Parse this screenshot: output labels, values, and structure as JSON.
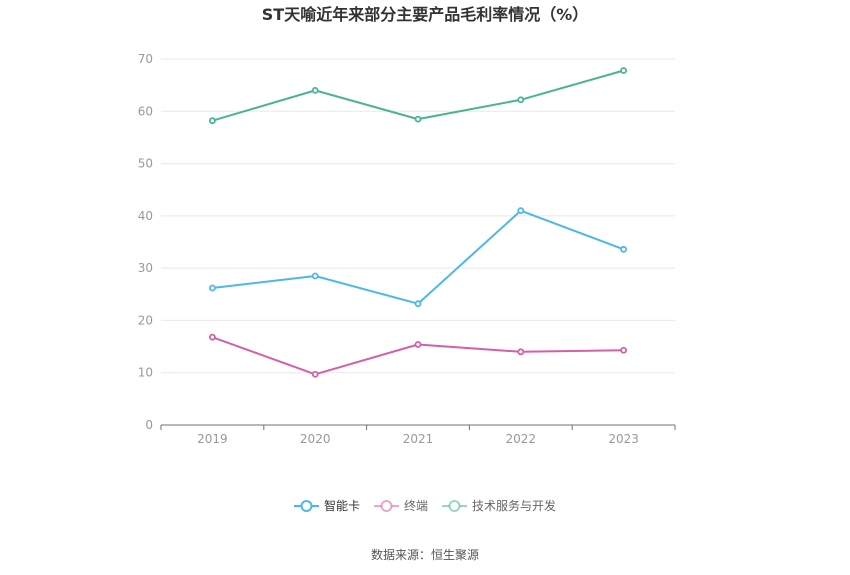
{
  "chart_data": {
    "type": "line",
    "title": "ST天喻近年来部分主要产品毛利率情况（%）",
    "source": "数据来源：恒生聚源",
    "categories": [
      "2019",
      "2020",
      "2021",
      "2022",
      "2023"
    ],
    "ylim": [
      0,
      70
    ],
    "yticks": [
      "0",
      "10",
      "20",
      "30",
      "40",
      "50",
      "60",
      "70"
    ],
    "grid": true,
    "legend_position": "bottom-center",
    "series": [
      {
        "name": "智能卡",
        "color": "#4db8e8",
        "values": [
          26.2,
          28.5,
          23.2,
          41.0,
          33.6
        ]
      },
      {
        "name": "终端",
        "color": "#d45fa8",
        "values": [
          16.8,
          9.7,
          15.4,
          14.0,
          14.3
        ]
      },
      {
        "name": "技术服务与开发",
        "color": "#4ab394",
        "values": [
          58.2,
          64.0,
          58.5,
          62.2,
          67.8
        ]
      }
    ]
  }
}
